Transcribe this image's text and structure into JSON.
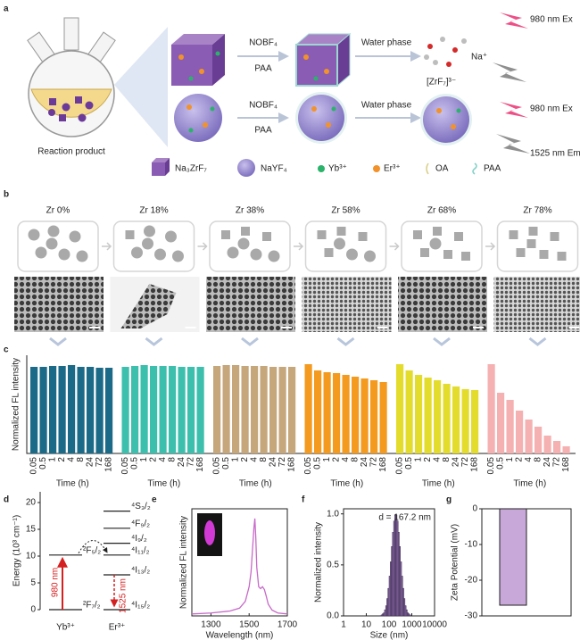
{
  "panel_labels": [
    "a",
    "b",
    "c",
    "d",
    "e",
    "f",
    "g"
  ],
  "scheme": {
    "flask_label": "Reaction product",
    "rows": [
      {
        "reagent": "NOBF₄",
        "additive": "PAA",
        "next": "Water phase"
      },
      {
        "reagent": "NOBF₄",
        "additive": "PAA",
        "next": "Water phase"
      }
    ],
    "ions": [
      "Na⁺",
      "[ZrF₇]³⁻"
    ],
    "row1_excitation": "980 nm Ex",
    "row2_excitation": "980 nm Ex",
    "row2_emission": "1525 nm Em",
    "legend": [
      "Na₃ZrF₇",
      "NaYF₄",
      "Yb³⁺",
      "Er³⁺",
      "OA",
      "PAA"
    ]
  },
  "chart_data": [
    {
      "type": "grouped_bar",
      "ylabel": "Normalized FL intensity",
      "xlabel": "Time (h)",
      "categories": [
        "0.05",
        "0.5",
        "1",
        "2",
        "4",
        "8",
        "24",
        "72",
        "168"
      ],
      "ylim": [
        0,
        1.1
      ],
      "series": [
        {
          "name": "Zr 0%",
          "color": "#1b6a87",
          "values": [
            0.97,
            0.97,
            0.98,
            0.98,
            0.99,
            0.97,
            0.97,
            0.96,
            0.96
          ]
        },
        {
          "name": "Zr 18%",
          "color": "#3dbfae",
          "values": [
            0.97,
            0.98,
            0.99,
            0.98,
            0.98,
            0.98,
            0.97,
            0.97,
            0.97
          ]
        },
        {
          "name": "Zr 38%",
          "color": "#c6a67b",
          "values": [
            0.98,
            0.99,
            0.99,
            0.98,
            0.98,
            0.98,
            0.97,
            0.97,
            0.97
          ]
        },
        {
          "name": "Zr 58%",
          "color": "#f39a1f",
          "values": [
            1.0,
            0.93,
            0.91,
            0.9,
            0.88,
            0.86,
            0.84,
            0.82,
            0.8
          ]
        },
        {
          "name": "Zr 68%",
          "color": "#e4dc2c",
          "values": [
            1.0,
            0.93,
            0.88,
            0.85,
            0.82,
            0.78,
            0.75,
            0.72,
            0.71
          ]
        },
        {
          "name": "Zr 78%",
          "color": "#f5b1b1",
          "values": [
            1.0,
            0.68,
            0.6,
            0.48,
            0.38,
            0.3,
            0.2,
            0.14,
            0.08
          ]
        }
      ]
    },
    {
      "type": "energy_levels",
      "ylabel": "Energy (10³ cm⁻¹)",
      "ylim": [
        0,
        22
      ],
      "yticks": [
        0,
        5,
        10,
        15,
        20
      ],
      "ions": [
        {
          "name": "Yb³⁺",
          "levels": [
            {
              "label": "²F₇/₂",
              "energy": 0
            },
            {
              "label": "²F₅/₂",
              "energy": 10.2
            }
          ]
        },
        {
          "name": "Er³⁺",
          "levels": [
            {
              "label": "⁴I₁₅/₂",
              "energy": 0
            },
            {
              "label": "⁴I₁₃/₂",
              "energy": 6.5
            },
            {
              "label": "⁴I₁₁/₂",
              "energy": 10.2
            },
            {
              "label": "⁴I₉/₂",
              "energy": 12.4
            },
            {
              "label": "⁴F₉/₂",
              "energy": 15.2
            },
            {
              "label": "⁴S₃/₂",
              "energy": 18.4
            }
          ]
        }
      ],
      "annotations": [
        "980 nm",
        "1525 nm"
      ]
    },
    {
      "type": "line",
      "ylabel": "Normalized FL intensity",
      "xlabel": "Wavelength (nm)",
      "color": "#c76ac8",
      "x": [
        1200,
        1300,
        1400,
        1450,
        1480,
        1500,
        1510,
        1520,
        1525,
        1530,
        1535,
        1540,
        1550,
        1560,
        1570,
        1580,
        1590,
        1600,
        1620,
        1650,
        1700
      ],
      "values": [
        0.02,
        0.03,
        0.05,
        0.08,
        0.15,
        0.3,
        0.45,
        0.75,
        0.9,
        1.0,
        0.8,
        0.5,
        0.3,
        0.28,
        0.3,
        0.27,
        0.2,
        0.12,
        0.06,
        0.03,
        0.02
      ],
      "xlim": [
        1200,
        1700
      ],
      "xticks": [
        1300,
        1500,
        1700
      ],
      "ylim": [
        0,
        1.1
      ]
    },
    {
      "type": "histogram",
      "ylabel": "Normalized intensity",
      "xlabel": "Size (nm)",
      "annotation": "d = 167.2 nm",
      "color": "#8a6aa8",
      "xscale": "log",
      "bins": [
        35.5,
        39.8,
        44.7,
        50.1,
        56.2,
        63.1,
        70.8,
        79.4,
        89.1,
        100,
        112.2,
        125.9,
        141.3,
        158.5,
        177.8,
        199.5,
        223.9,
        251.2,
        281.8,
        316.2,
        354.8,
        398.1,
        446.7,
        501.2,
        562.3,
        631,
        707.9,
        794.3,
        891.3
      ],
      "counts": [
        0.0,
        0.003,
        0.01,
        0.02,
        0.03,
        0.06,
        0.1,
        0.17,
        0.27,
        0.39,
        0.53,
        0.68,
        0.82,
        0.93,
        0.99,
        0.99,
        0.93,
        0.82,
        0.68,
        0.53,
        0.39,
        0.27,
        0.17,
        0.1,
        0.06,
        0.03,
        0.02,
        0.01
      ],
      "xlim": [
        1,
        10000
      ],
      "xticks": [
        1,
        10,
        100,
        1000,
        10000
      ],
      "ylim": [
        0,
        1.05
      ],
      "yticks": [
        {
          "value": 0,
          "label": "0.0"
        },
        0.5,
        {
          "value": 1,
          "label": "1.0"
        }
      ]
    },
    {
      "type": "bar",
      "ylabel": "Zeta Potential (mV)",
      "color": "#c8a8d8",
      "values": [
        -27
      ],
      "ylim": [
        -30,
        0
      ],
      "yticks": [
        -30,
        -20,
        -10,
        0
      ]
    }
  ]
}
